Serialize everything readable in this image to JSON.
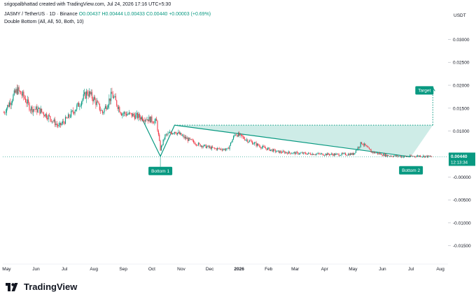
{
  "header": {
    "attribution": "srigopalbhattad created with TradingView.com, Jul 24, 2026 17:16 UTC+5:30"
  },
  "symbol": {
    "name": "JASMY / TetherUS · 1D · Binance",
    "ohlc": "O0.00437 H0.00444 L0.00433 C0.00440 +0.00003 (+0.69%)"
  },
  "indicator": {
    "label": "Double Bottom (All, All, 50, Both, 10)"
  },
  "price_axis": {
    "currency": "USDT",
    "last_price": "0.00440",
    "countdown": "12:13:34"
  },
  "footer": {
    "brand": "TradingView"
  },
  "colors": {
    "up": "#089981",
    "down": "#f23645",
    "pattern": "#089981",
    "pattern_fill": "#a6dcd3"
  },
  "chart_data": {
    "type": "candlestick",
    "title": "JASMY / TetherUS · 1D · Binance",
    "y_unit": "USDT",
    "ylim": [
      -0.019,
      0.0325
    ],
    "y_ticks": [
      0.03,
      0.025,
      0.02,
      0.015,
      0.01,
      0.005,
      0.0,
      -0.005,
      -0.01,
      -0.015
    ],
    "y_tick_labels": [
      "0.03000",
      "0.02500",
      "0.02000",
      "0.01500",
      "0.01000",
      "0.00500",
      "-0.00000",
      "-0.00500",
      "-0.01000",
      "-0.01500"
    ],
    "x_ticks": [
      {
        "date": "2025-05-01",
        "label": "May",
        "bold": false
      },
      {
        "date": "2025-06-01",
        "label": "Jun",
        "bold": false
      },
      {
        "date": "2025-07-01",
        "label": "Jul",
        "bold": false
      },
      {
        "date": "2025-08-01",
        "label": "Aug",
        "bold": false
      },
      {
        "date": "2025-09-01",
        "label": "Sep",
        "bold": false
      },
      {
        "date": "2025-10-01",
        "label": "Oct",
        "bold": false
      },
      {
        "date": "2025-11-01",
        "label": "Nov",
        "bold": false
      },
      {
        "date": "2025-12-01",
        "label": "Dec",
        "bold": false
      },
      {
        "date": "2026-01-01",
        "label": "2026",
        "bold": true
      },
      {
        "date": "2026-02-01",
        "label": "Feb",
        "bold": false
      },
      {
        "date": "2026-03-01",
        "label": "Mar",
        "bold": false
      },
      {
        "date": "2026-04-01",
        "label": "Apr",
        "bold": false
      },
      {
        "date": "2026-05-01",
        "label": "May",
        "bold": false
      },
      {
        "date": "2026-06-01",
        "label": "Jun",
        "bold": false
      },
      {
        "date": "2026-07-01",
        "label": "Jul",
        "bold": false
      },
      {
        "date": "2026-08-01",
        "label": "Aug",
        "bold": false
      }
    ],
    "close_path": [
      [
        "2025-04-28",
        0.014
      ],
      [
        "2025-05-05",
        0.0165
      ],
      [
        "2025-05-12",
        0.019
      ],
      [
        "2025-05-19",
        0.0175
      ],
      [
        "2025-05-26",
        0.015
      ],
      [
        "2025-06-05",
        0.0145
      ],
      [
        "2025-06-15",
        0.013
      ],
      [
        "2025-06-25",
        0.011
      ],
      [
        "2025-07-05",
        0.013
      ],
      [
        "2025-07-15",
        0.0155
      ],
      [
        "2025-07-25",
        0.0185
      ],
      [
        "2025-08-01",
        0.017
      ],
      [
        "2025-08-10",
        0.014
      ],
      [
        "2025-08-20",
        0.018
      ],
      [
        "2025-08-30",
        0.014
      ],
      [
        "2025-09-10",
        0.0135
      ],
      [
        "2025-09-20",
        0.013
      ],
      [
        "2025-09-30",
        0.0125
      ],
      [
        "2025-10-06",
        0.012
      ],
      [
        "2025-10-10",
        0.006
      ],
      [
        "2025-10-15",
        0.009
      ],
      [
        "2025-10-25",
        0.01
      ],
      [
        "2025-11-05",
        0.0085
      ],
      [
        "2025-11-20",
        0.007
      ],
      [
        "2025-12-05",
        0.0062
      ],
      [
        "2025-12-20",
        0.006
      ],
      [
        "2025-12-28",
        0.0095
      ],
      [
        "2026-01-10",
        0.008
      ],
      [
        "2026-01-25",
        0.0065
      ],
      [
        "2026-02-10",
        0.0055
      ],
      [
        "2026-03-01",
        0.0052
      ],
      [
        "2026-03-25",
        0.005
      ],
      [
        "2026-04-15",
        0.0049
      ],
      [
        "2026-05-01",
        0.005
      ],
      [
        "2026-05-10",
        0.0075
      ],
      [
        "2026-05-20",
        0.0055
      ],
      [
        "2026-06-05",
        0.0047
      ],
      [
        "2026-06-25",
        0.0044
      ],
      [
        "2026-07-10",
        0.0046
      ],
      [
        "2026-07-23",
        0.0044
      ]
    ],
    "pattern": {
      "name": "Double Bottom",
      "labels": [
        {
          "text": "Bottom 1",
          "date": "2025-10-10",
          "value": 0.00435
        },
        {
          "text": "Bottom 2",
          "date": "2026-07-01",
          "value": 0.00435
        }
      ],
      "target_label": "Target",
      "target_value": 0.0195,
      "neckline": [
        [
          "2025-10-10",
          0.0045
        ],
        [
          "2025-10-25",
          0.0113
        ],
        [
          "2026-07-01",
          0.0044
        ]
      ],
      "dotted_level": 0.0113,
      "target_x_date": "2026-07-24"
    }
  }
}
